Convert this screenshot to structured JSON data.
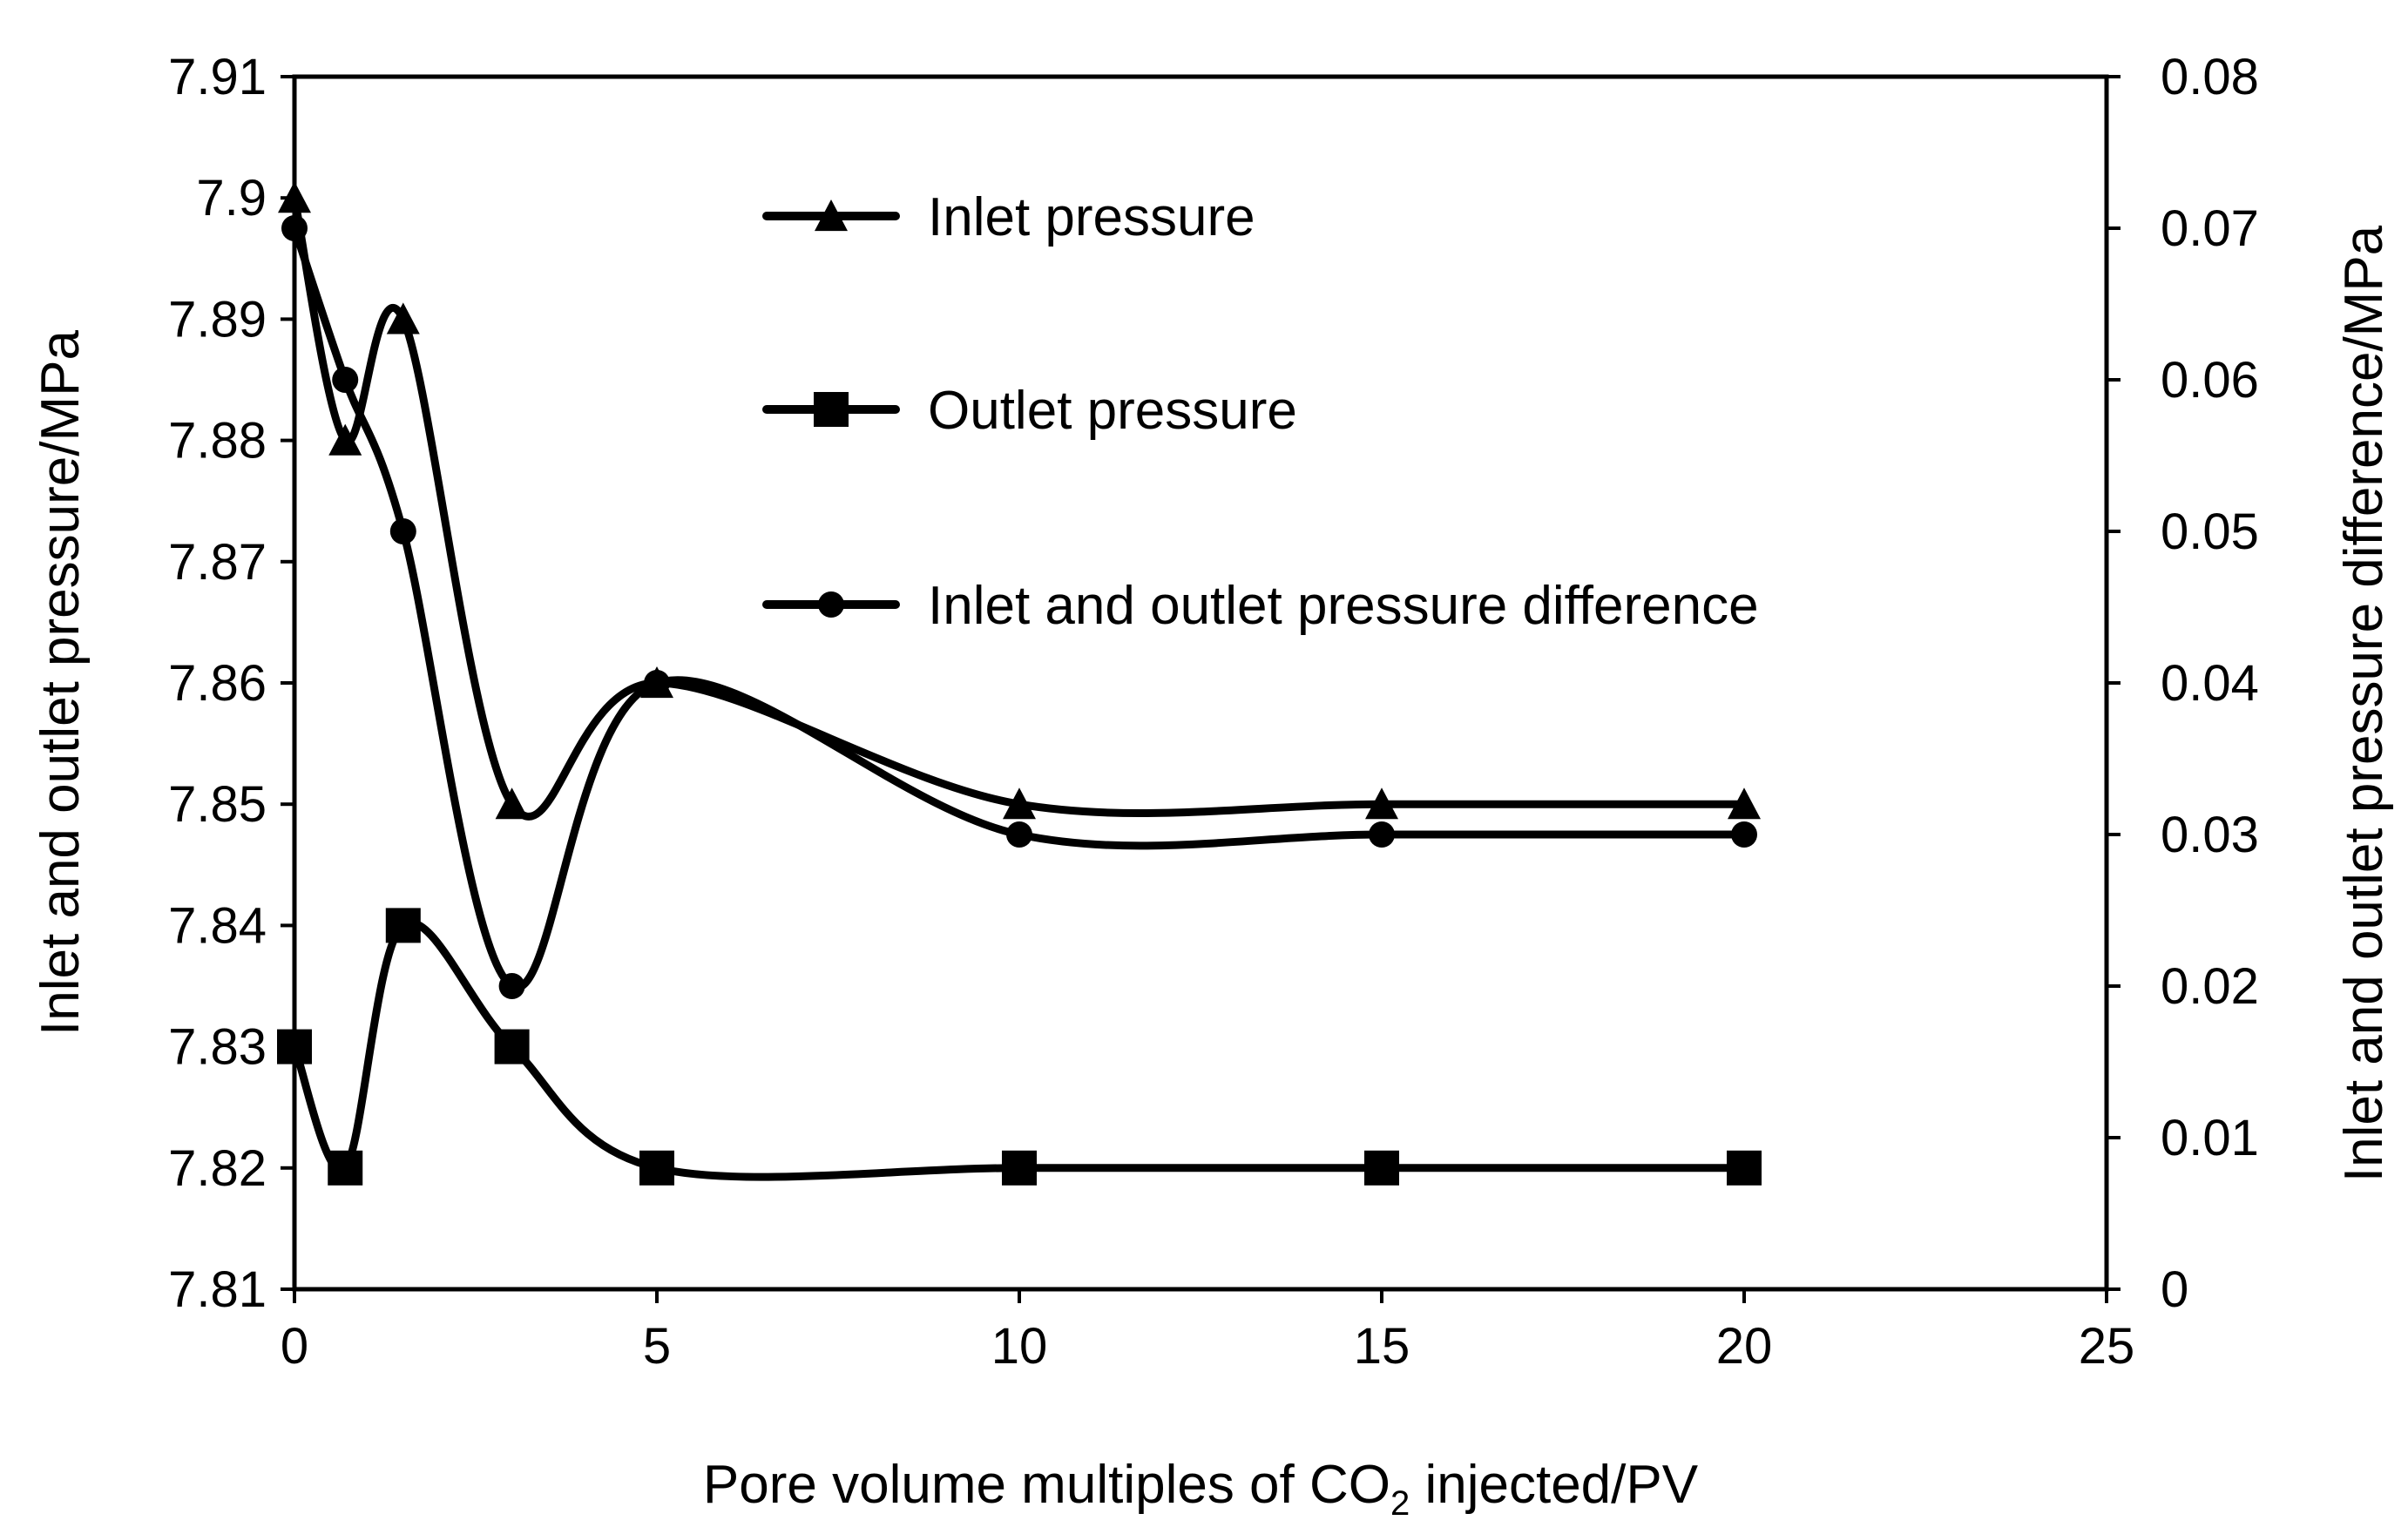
{
  "chart_data": {
    "type": "line",
    "title": "",
    "smooth": true,
    "xlabel_parts": {
      "pre": "Pore volume multiples of CO",
      "sub": "2",
      "post": " injected/PV"
    },
    "ylabel_left": "Inlet and outlet pressure/MPa",
    "ylabel_right": "Inlet and outlet pressure difference/MPa",
    "xlim": [
      0,
      25
    ],
    "ylim_left": [
      7.81,
      7.91
    ],
    "ylim_right": [
      0,
      0.08
    ],
    "x_ticks": [
      "0",
      "5",
      "10",
      "15",
      "20",
      "25"
    ],
    "y_left_ticks": [
      "7.81",
      "7.82",
      "7.83",
      "7.84",
      "7.85",
      "7.86",
      "7.87",
      "7.88",
      "7.89",
      "7.9",
      "7.91"
    ],
    "y_right_ticks": [
      "0",
      "0.01",
      "0.02",
      "0.03",
      "0.04",
      "0.05",
      "0.06",
      "0.07",
      "0.08"
    ],
    "legend_position": "top-center",
    "series": [
      {
        "name": "Inlet pressure",
        "axis": "left",
        "marker": "triangle",
        "x": [
          0,
          0.7,
          1.5,
          3,
          5,
          10,
          15,
          20
        ],
        "y": [
          7.9,
          7.88,
          7.89,
          7.85,
          7.86,
          7.85,
          7.85,
          7.85
        ]
      },
      {
        "name": "Outlet pressure",
        "axis": "left",
        "marker": "square",
        "x": [
          0,
          0.7,
          1.5,
          3,
          5,
          10,
          15,
          20
        ],
        "y": [
          7.83,
          7.82,
          7.84,
          7.83,
          7.82,
          7.82,
          7.82,
          7.82
        ]
      },
      {
        "name": "Inlet and outlet pressure difference",
        "axis": "right",
        "marker": "circle",
        "x": [
          0,
          0.7,
          1.5,
          3,
          5,
          10,
          15,
          20
        ],
        "y": [
          0.07,
          0.06,
          0.05,
          0.02,
          0.04,
          0.03,
          0.03,
          0.03
        ]
      }
    ]
  }
}
